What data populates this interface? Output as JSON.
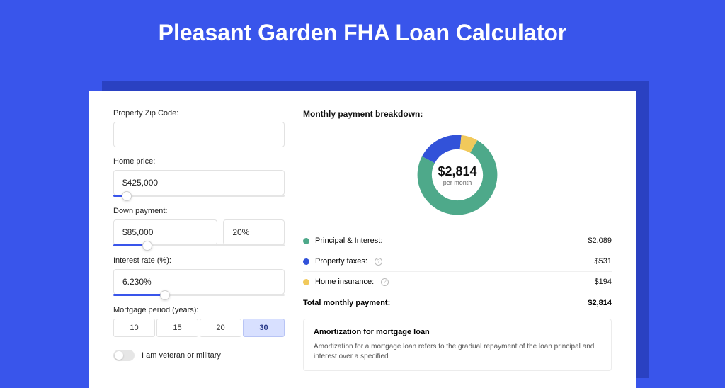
{
  "page": {
    "title": "Pleasant Garden FHA Loan Calculator",
    "bg_color": "#3955eb"
  },
  "form": {
    "zip": {
      "label": "Property Zip Code:",
      "value": ""
    },
    "home_price": {
      "label": "Home price:",
      "value": "$425,000",
      "slider_percent": 8
    },
    "down_payment": {
      "label": "Down payment:",
      "value": "$85,000",
      "percent": "20%",
      "slider_percent": 20
    },
    "interest_rate": {
      "label": "Interest rate (%):",
      "value": "6.230%",
      "slider_percent": 30
    },
    "period": {
      "label": "Mortgage period (years):",
      "options": [
        "10",
        "15",
        "20",
        "30"
      ],
      "selected": "30"
    },
    "veteran": {
      "label": "I am veteran or military",
      "on": false
    }
  },
  "breakdown": {
    "title": "Monthly payment breakdown:",
    "donut": {
      "value": "$2,814",
      "sub": "per month",
      "slices": [
        {
          "color": "#4ea98a",
          "percent": 74.2
        },
        {
          "color": "#3252d9",
          "percent": 18.9
        },
        {
          "color": "#f1c95b",
          "percent": 6.9
        }
      ]
    },
    "items": [
      {
        "label": "Principal & Interest:",
        "color": "#4ea98a",
        "value": "$2,089",
        "info": false
      },
      {
        "label": "Property taxes:",
        "color": "#3252d9",
        "value": "$531",
        "info": true
      },
      {
        "label": "Home insurance:",
        "color": "#f1c95b",
        "value": "$194",
        "info": true
      }
    ],
    "total": {
      "label": "Total monthly payment:",
      "value": "$2,814"
    }
  },
  "amortization": {
    "title": "Amortization for mortgage loan",
    "text": "Amortization for a mortgage loan refers to the gradual repayment of the loan principal and interest over a specified"
  }
}
